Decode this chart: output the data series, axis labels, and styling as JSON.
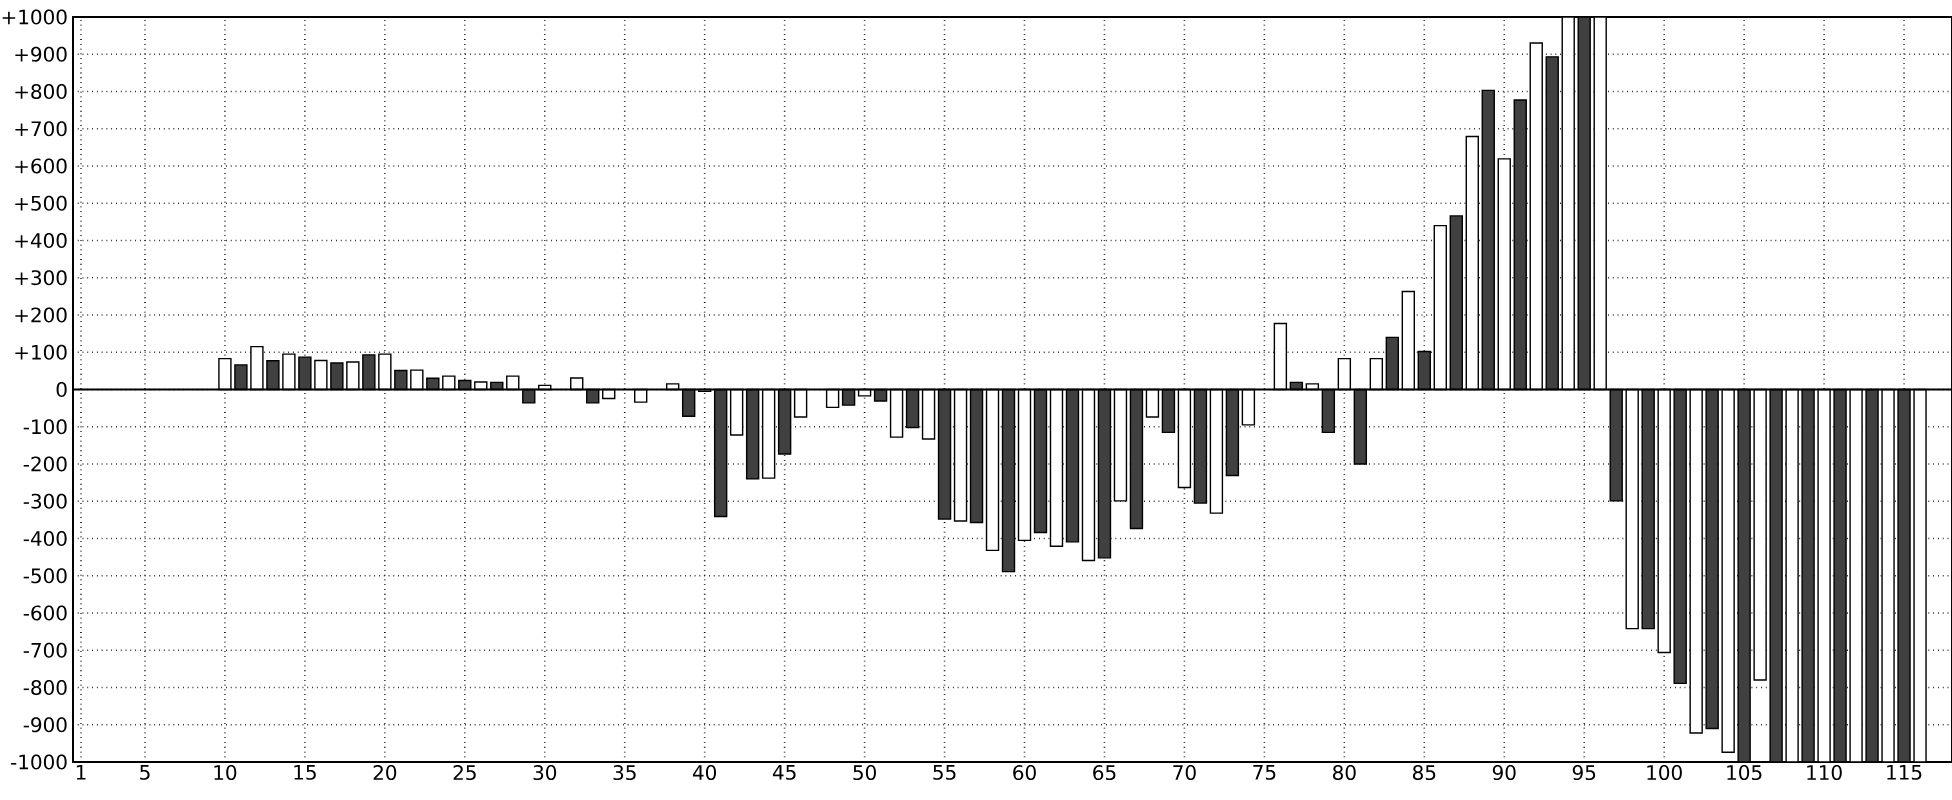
{
  "chart_data": {
    "type": "bar",
    "series": [
      {
        "color": "#ffffff",
        "x": [
          10,
          12,
          14,
          16,
          18,
          20,
          22,
          24,
          26,
          28,
          30,
          32,
          34,
          36,
          38,
          40,
          42,
          44,
          46,
          48,
          50,
          52,
          54,
          56,
          58,
          60,
          62,
          64,
          66,
          68,
          70,
          72,
          74,
          76,
          78,
          80,
          82,
          84,
          86,
          88,
          90,
          92,
          94,
          96,
          98,
          100,
          102,
          104,
          106,
          108,
          110,
          112,
          114,
          116
        ],
        "values": [
          83,
          115,
          95,
          78,
          74,
          95,
          52,
          36,
          20,
          36,
          11,
          31,
          -24,
          -34,
          15,
          -5,
          -122,
          -238,
          -74,
          -48,
          -17,
          -128,
          -133,
          -353,
          -432,
          -405,
          -421,
          -459,
          -299,
          -74,
          -263,
          -332,
          -95,
          177,
          15,
          83,
          83,
          263,
          440,
          679,
          619,
          930,
          1000,
          1000,
          -642,
          -706,
          -922,
          -974,
          -780,
          -1000,
          -1000,
          -1000,
          -1000,
          -1000
        ]
      },
      {
        "color": "#404040",
        "x": [
          11,
          13,
          15,
          17,
          19,
          21,
          23,
          25,
          27,
          29,
          33,
          39,
          41,
          43,
          45,
          49,
          51,
          53,
          55,
          57,
          59,
          61,
          63,
          65,
          67,
          69,
          71,
          73,
          77,
          79,
          81,
          83,
          85,
          87,
          89,
          91,
          93,
          95,
          97,
          99,
          101,
          103,
          105,
          107,
          109,
          111,
          113,
          115
        ],
        "values": [
          66,
          77,
          87,
          71,
          93,
          51,
          30,
          24,
          19,
          -36,
          -36,
          -72,
          -341,
          -240,
          -173,
          -42,
          -31,
          -102,
          -348,
          -357,
          -489,
          -384,
          -409,
          -452,
          -373,
          -115,
          -305,
          -231,
          19,
          -115,
          -200,
          140,
          102,
          466,
          803,
          777,
          893,
          1000,
          -299,
          -642,
          -789,
          -910,
          -1000,
          -1000,
          -1000,
          -1000,
          -1000,
          -1000
        ]
      }
    ],
    "xlim": [
      0.5,
      118
    ],
    "ylim": [
      -1000,
      1000
    ],
    "xticks": [
      1,
      5,
      10,
      15,
      20,
      25,
      30,
      35,
      40,
      45,
      50,
      55,
      60,
      65,
      70,
      75,
      80,
      85,
      90,
      95,
      100,
      105,
      110,
      115
    ],
    "yticks": [
      -1000,
      -900,
      -800,
      -700,
      -600,
      -500,
      -400,
      -300,
      -200,
      -100,
      0,
      {
        "value": 100,
        "label": "+100"
      },
      {
        "value": 200,
        "label": "+200"
      },
      {
        "value": 300,
        "label": "+300"
      },
      {
        "value": 400,
        "label": "+400"
      },
      {
        "value": 500,
        "label": "+500"
      },
      {
        "value": 600,
        "label": "+600"
      },
      {
        "value": 700,
        "label": "+700"
      },
      {
        "value": 800,
        "label": "+800"
      },
      {
        "value": 900,
        "label": "+900"
      },
      {
        "value": 1000,
        "label": "+1000"
      }
    ],
    "grid": true
  }
}
